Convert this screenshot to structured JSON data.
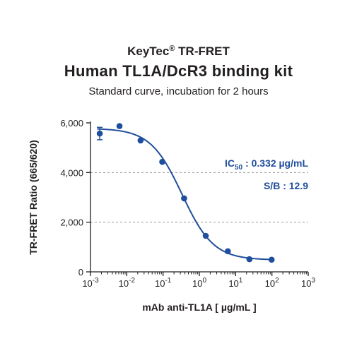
{
  "header": {
    "brand": "KeyTec",
    "brand_mark": "®",
    "brand_suffix": " TR-FRET",
    "title": "Human TL1A/DcR3 binding kit",
    "subtitle": "Standard curve,  incubation for 2 hours"
  },
  "colors": {
    "series": "#1f4e9c",
    "text": "#231f20",
    "gridline": "#999999"
  },
  "chart_data": {
    "type": "scatter",
    "xscale": "log",
    "xlabel": "mAb anti-TL1A  [ µg/mL ]",
    "ylabel": "TR-FRET Ratio (665/620)",
    "xlim": [
      0.001,
      1000
    ],
    "ylim": [
      0,
      6000
    ],
    "yticks": [
      0,
      2000,
      4000,
      6000
    ],
    "ytick_labels": [
      "0",
      "2,000",
      "4,000",
      "6,000"
    ],
    "xtick_labels": [
      {
        "base": "10",
        "exp": "-3"
      },
      {
        "base": "10",
        "exp": "-2"
      },
      {
        "base": "10",
        "exp": "-1"
      },
      {
        "base": "10",
        "exp": "0"
      },
      {
        "base": "10",
        "exp": "1"
      },
      {
        "base": "10",
        "exp": "2"
      },
      {
        "base": "10",
        "exp": "3"
      }
    ],
    "reference_lines": [
      4000,
      2000
    ],
    "points": [
      {
        "x": 0.0018,
        "y": 5570,
        "err": 250
      },
      {
        "x": 0.0063,
        "y": 5870
      },
      {
        "x": 0.024,
        "y": 5290
      },
      {
        "x": 0.095,
        "y": 4430
      },
      {
        "x": 0.38,
        "y": 2960
      },
      {
        "x": 1.5,
        "y": 1450
      },
      {
        "x": 6.1,
        "y": 830
      },
      {
        "x": 24,
        "y": 510
      },
      {
        "x": 98,
        "y": 490
      }
    ],
    "fit": {
      "model": "4PL",
      "top": 5780,
      "bottom": 480,
      "ic50": 0.332,
      "hill": 1.0
    },
    "annotations": {
      "ic50_label": "IC",
      "ic50_sub": "50",
      "ic50_value": " : 0.332 µg/mL",
      "sb": "S/B : 12.9"
    }
  }
}
